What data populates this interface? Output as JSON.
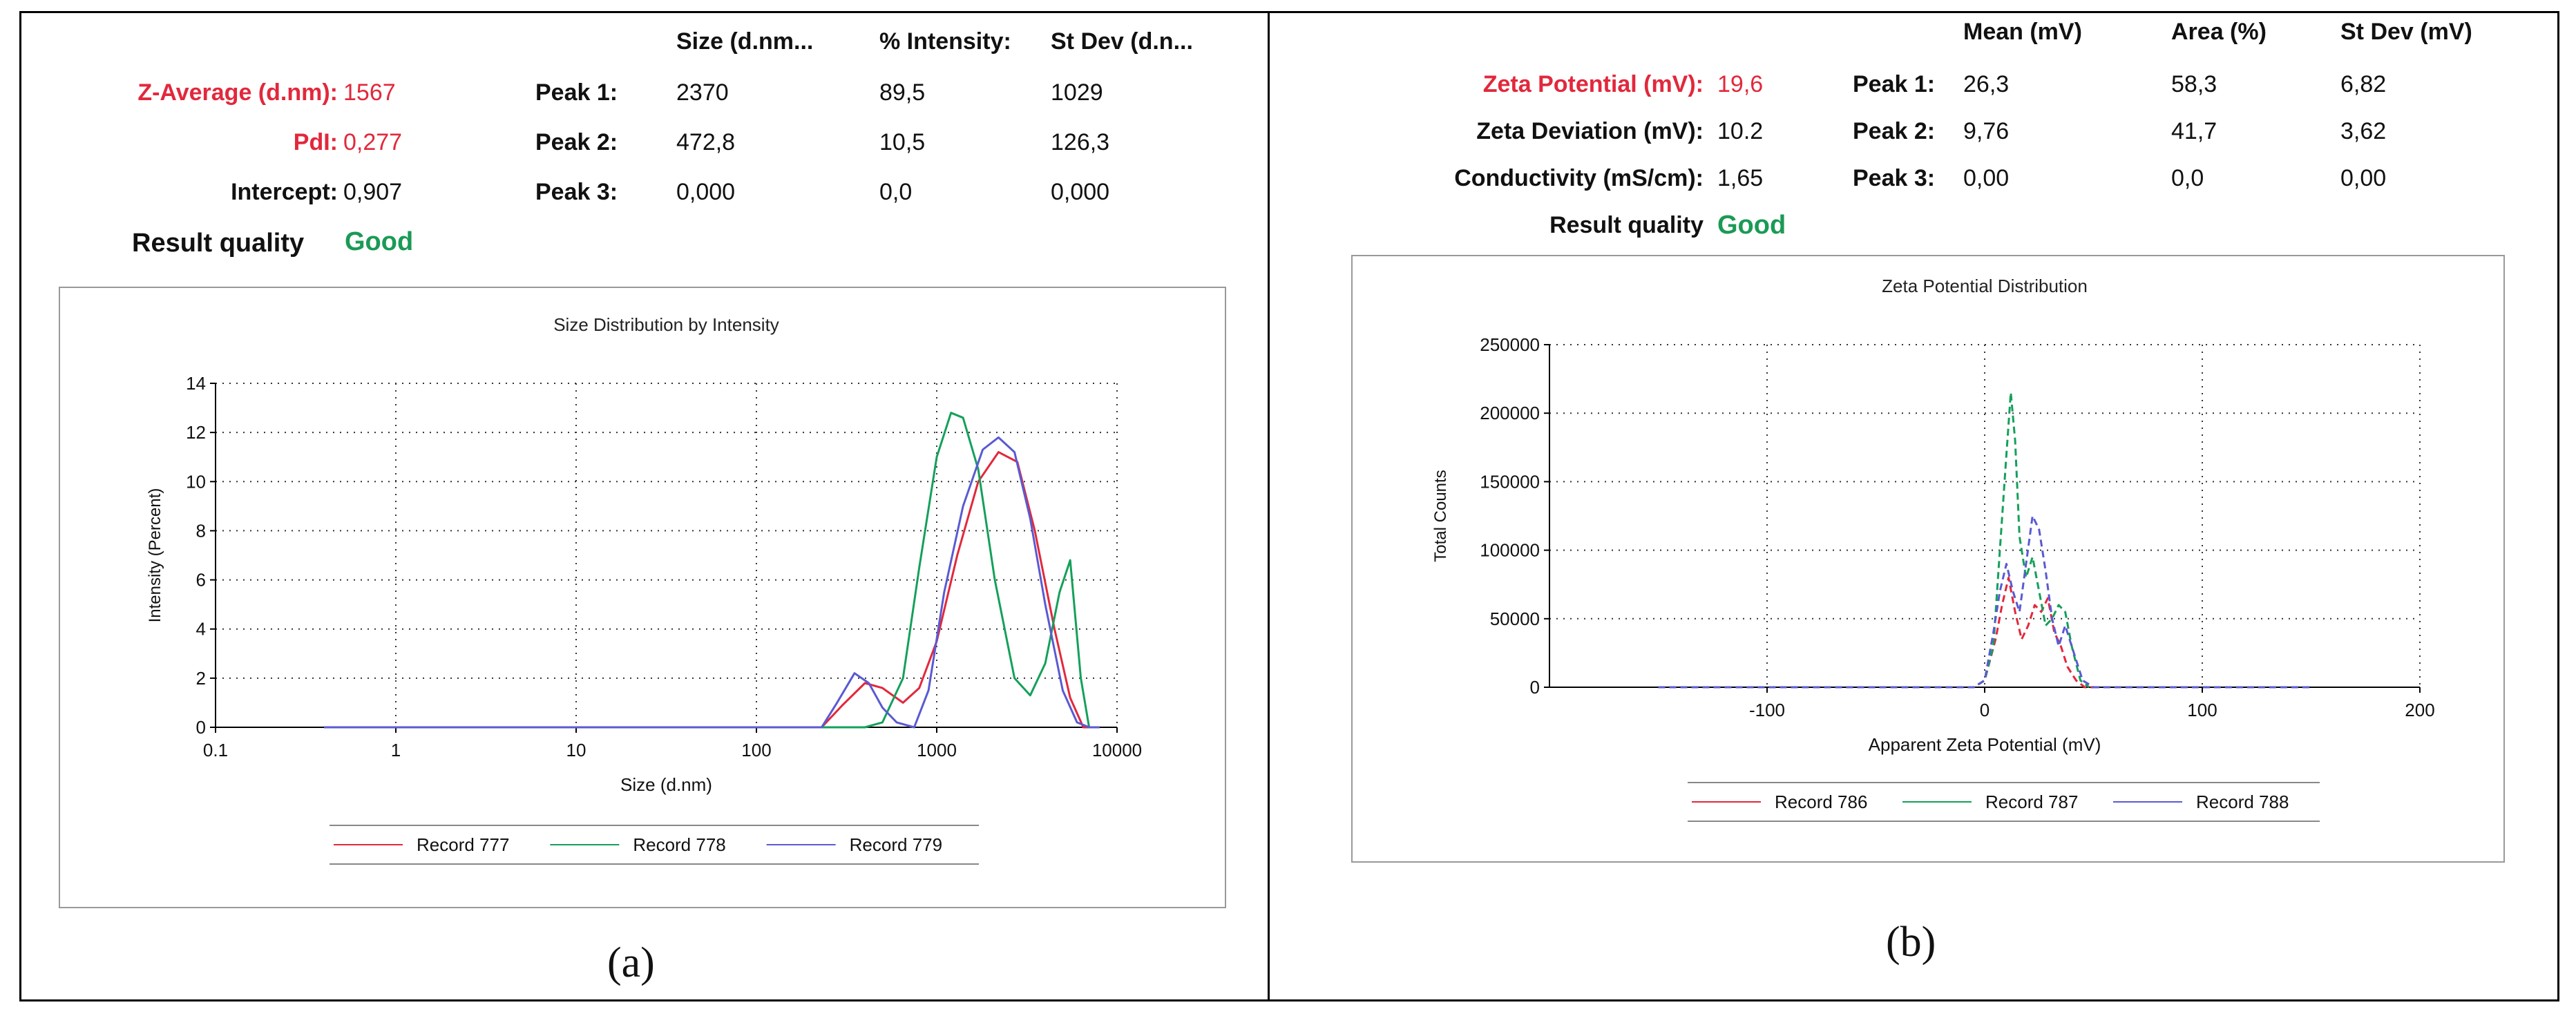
{
  "colors": {
    "red": "#e2283c",
    "green": "#14a05a",
    "blue": "#5a5ad2",
    "good": "#1a9a55"
  },
  "panel_a": {
    "headers": [
      "Size (d.nm...",
      "% Intensity:",
      "St Dev (d.n..."
    ],
    "z_average": {
      "label": "Z-Average (d.nm):",
      "value": "1567"
    },
    "pdi": {
      "label": "PdI:",
      "value": "0,277"
    },
    "intercept": {
      "label": "Intercept:",
      "value": "0,907"
    },
    "result_quality": {
      "label": "Result quality",
      "value": "Good"
    },
    "peaks": [
      {
        "label": "Peak 1:",
        "v1": "2370",
        "v2": "89,5",
        "v3": "1029"
      },
      {
        "label": "Peak 2:",
        "v1": "472,8",
        "v2": "10,5",
        "v3": "126,3"
      },
      {
        "label": "Peak 3:",
        "v1": "0,000",
        "v2": "0,0",
        "v3": "0,000"
      }
    ],
    "caption": "(a)"
  },
  "panel_b": {
    "headers": [
      "Mean (mV)",
      "Area (%)",
      "St Dev (mV)"
    ],
    "zeta_potential": {
      "label": "Zeta Potential (mV):",
      "value": "19,6"
    },
    "zeta_deviation": {
      "label": "Zeta Deviation (mV):",
      "value": "10.2"
    },
    "conductivity": {
      "label": "Conductivity (mS/cm):",
      "value": "1,65"
    },
    "result_quality": {
      "label": "Result quality",
      "value": "Good"
    },
    "peaks": [
      {
        "label": "Peak 1:",
        "v1": "26,3",
        "v2": "58,3",
        "v3": "6,82"
      },
      {
        "label": "Peak 2:",
        "v1": "9,76",
        "v2": "41,7",
        "v3": "3,62"
      },
      {
        "label": "Peak 3:",
        "v1": "0,00",
        "v2": "0,0",
        "v3": "0,00"
      }
    ],
    "caption": "(b)"
  },
  "chart_data": [
    {
      "type": "line",
      "title": "Size Distribution by Intensity",
      "xlabel": "Size (d.nm)",
      "ylabel": "Intensity (Percent)",
      "xscale": "log",
      "xlim": [
        0.1,
        10000
      ],
      "ylim": [
        0,
        14
      ],
      "xticks": [
        0.1,
        1,
        10,
        100,
        1000,
        10000
      ],
      "xtick_labels": [
        "0.1",
        "1",
        "10",
        "100",
        "1000",
        "10000"
      ],
      "yticks": [
        0,
        2,
        4,
        6,
        8,
        10,
        12,
        14
      ],
      "ytick_labels": [
        "0",
        "2",
        "4",
        "6",
        "8",
        "10",
        "12",
        "14"
      ],
      "grid": true,
      "legend": "bottom-center",
      "series": [
        {
          "name": "Record 777",
          "color": "#e2283c",
          "dashed": false,
          "x": [
            0.4,
            100,
            230,
            300,
            400,
            500,
            650,
            800,
            1000,
            1300,
            1700,
            2200,
            2800,
            3500,
            4500,
            5500,
            6500,
            8000
          ],
          "y": [
            0,
            0,
            0,
            0.9,
            1.8,
            1.6,
            1.0,
            1.6,
            3.5,
            7.0,
            10.0,
            11.2,
            10.8,
            8.0,
            4.0,
            1.2,
            0,
            0
          ]
        },
        {
          "name": "Record 778",
          "color": "#14a05a",
          "dashed": false,
          "x": [
            0.4,
            100,
            250,
            400,
            500,
            650,
            800,
            1000,
            1200,
            1400,
            1700,
            2100,
            2700,
            3300,
            4000,
            4800,
            5500,
            6300,
            7000,
            8000
          ],
          "y": [
            0,
            0,
            0,
            0,
            0.2,
            2.0,
            6.5,
            11.0,
            12.8,
            12.6,
            10.5,
            6.0,
            2.0,
            1.3,
            2.6,
            5.5,
            6.8,
            2.0,
            0,
            0
          ]
        },
        {
          "name": "Record 779",
          "color": "#5a5ad2",
          "dashed": false,
          "x": [
            0.4,
            100,
            230,
            280,
            350,
            420,
            500,
            600,
            750,
            900,
            1100,
            1400,
            1800,
            2200,
            2700,
            3300,
            4000,
            5000,
            6000,
            7000,
            8000
          ],
          "y": [
            0,
            0,
            0,
            1.0,
            2.2,
            1.8,
            0.8,
            0.2,
            0,
            1.5,
            5.5,
            9.0,
            11.3,
            11.8,
            11.2,
            8.5,
            5.0,
            1.5,
            0.2,
            0,
            0
          ]
        }
      ]
    },
    {
      "type": "line",
      "title": "Zeta Potential Distribution",
      "xlabel": "Apparent Zeta Potential (mV)",
      "ylabel": "Total Counts",
      "xlim": [
        -200,
        200
      ],
      "ylim": [
        0,
        250000
      ],
      "xticks": [
        -100,
        0,
        100,
        200
      ],
      "xtick_labels": [
        "-100",
        "0",
        "100",
        "200"
      ],
      "yticks": [
        0,
        50000,
        100000,
        150000,
        200000,
        250000
      ],
      "ytick_labels": [
        "0",
        "50000",
        "100000",
        "150000",
        "200000",
        "250000"
      ],
      "grid": true,
      "legend": "bottom-center",
      "series": [
        {
          "name": "Record 786",
          "color": "#e2283c",
          "dashed": true,
          "x": [
            -150,
            -5,
            0,
            5,
            8,
            11,
            14,
            17,
            20,
            23,
            26,
            29,
            32,
            35,
            38,
            42,
            46,
            50
          ],
          "y": [
            0,
            0,
            5000,
            35000,
            60000,
            80000,
            55000,
            35000,
            45000,
            60000,
            55000,
            65000,
            40000,
            30000,
            15000,
            5000,
            0,
            0
          ]
        },
        {
          "name": "Record 787",
          "color": "#14a05a",
          "dashed": true,
          "x": [
            -150,
            -5,
            0,
            4,
            7,
            10,
            12,
            14,
            16,
            19,
            22,
            25,
            28,
            31,
            34,
            37,
            40,
            44,
            48
          ],
          "y": [
            0,
            0,
            5000,
            30000,
            100000,
            170000,
            215000,
            180000,
            110000,
            80000,
            95000,
            70000,
            45000,
            50000,
            60000,
            55000,
            30000,
            5000,
            0
          ]
        },
        {
          "name": "Record 788",
          "color": "#5a5ad2",
          "dashed": true,
          "x": [
            -150,
            -5,
            0,
            4,
            7,
            10,
            13,
            16,
            19,
            22,
            25,
            28,
            31,
            34,
            37,
            40,
            45,
            50,
            150
          ],
          "y": [
            0,
            0,
            5000,
            40000,
            70000,
            90000,
            70000,
            55000,
            90000,
            125000,
            115000,
            85000,
            50000,
            30000,
            45000,
            30000,
            5000,
            0,
            0
          ]
        }
      ]
    }
  ]
}
